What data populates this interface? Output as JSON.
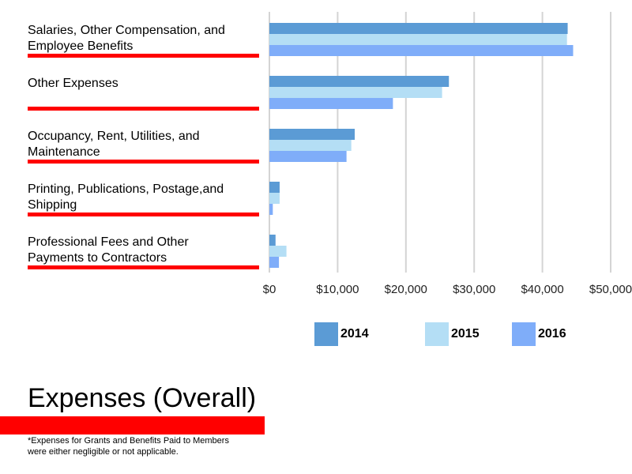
{
  "chart_data": {
    "type": "bar",
    "orientation": "horizontal",
    "title": "Expenses (Overall)",
    "footnote": "*Expenses for Grants and Benefits Paid to Members\nwere either negligible or not applicable.",
    "categories": [
      "Salaries, Other Compensation, and\nEmployee Benefits",
      "Other Expenses",
      "Occupancy, Rent, Utilities, and\nMaintenance",
      "Printing, Publications, Postage,and\nShipping",
      "Professional Fees and Other\nPayments to Contractors"
    ],
    "series": [
      {
        "name": "2014",
        "color": "#5b9bd5",
        "values": [
          43700,
          26300,
          12500,
          1500,
          900
        ]
      },
      {
        "name": "2015",
        "color": "#b4def5",
        "values": [
          43600,
          25300,
          12000,
          1500,
          2500
        ]
      },
      {
        "name": "2016",
        "color": "#7fadf9",
        "values": [
          44500,
          18100,
          11300,
          500,
          1400
        ]
      }
    ],
    "xlim": [
      0,
      50000
    ],
    "xticks": [
      0,
      10000,
      20000,
      30000,
      40000,
      50000
    ],
    "xtick_labels": [
      "$0",
      "$10,000",
      "$20,000",
      "$30,000",
      "$40,000",
      "$50,000"
    ],
    "grid": "vertical",
    "legend_position": "bottom",
    "accent_color": "#ff0000"
  }
}
